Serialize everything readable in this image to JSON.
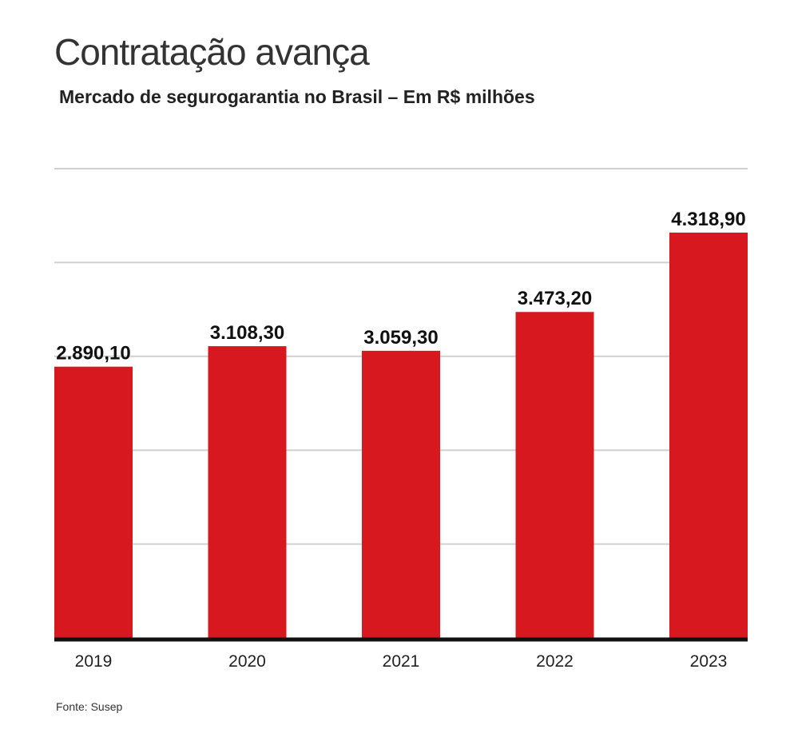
{
  "chart_data": {
    "type": "bar",
    "title": "Contratação avança",
    "subtitle": "Mercado de segurogarantia no Brasil – Em R$ milhões",
    "categories": [
      "2019",
      "2020",
      "2021",
      "2022",
      "2023"
    ],
    "values": [
      2890.1,
      3108.3,
      3059.3,
      3473.2,
      4318.9
    ],
    "value_labels": [
      "2.890,10",
      "3.108,30",
      "3.059,30",
      "3.473,20",
      "4.318,90"
    ],
    "xlabel": "",
    "ylabel": "",
    "ylim": [
      0,
      5000
    ],
    "gridlines": [
      1000,
      2000,
      3000,
      4000,
      5000
    ],
    "grid": true,
    "bar_color": "#d7191f",
    "source": "Fonte: Susep"
  }
}
